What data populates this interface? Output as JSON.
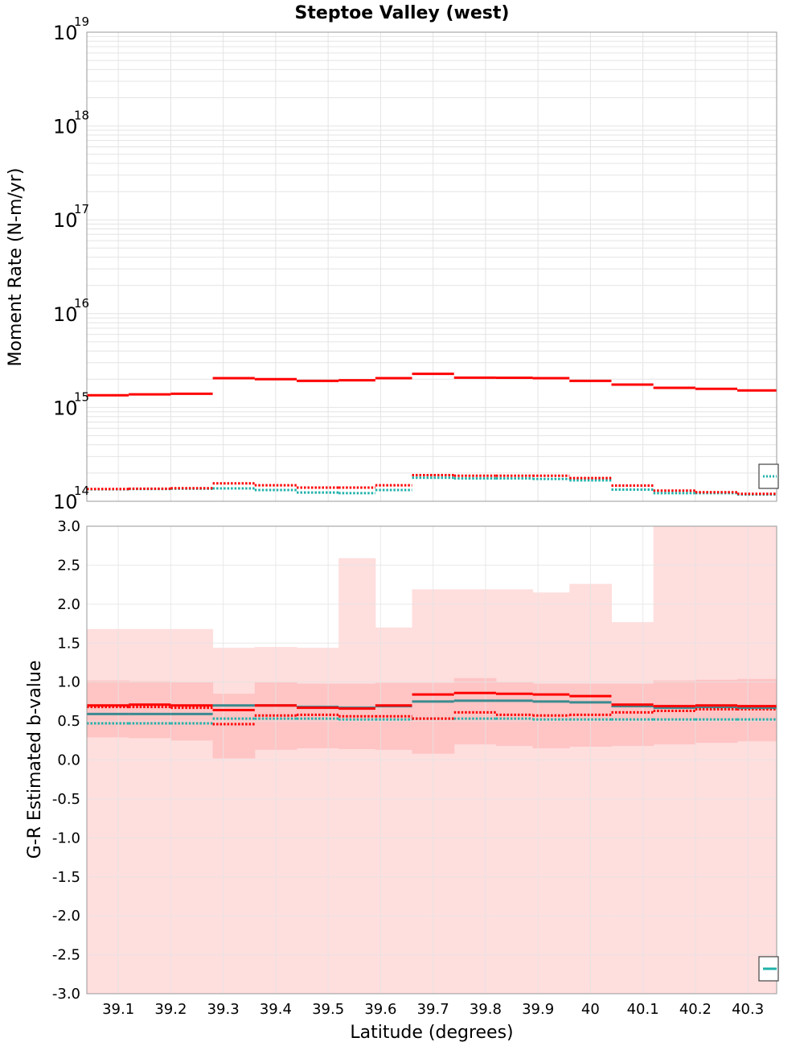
{
  "title": "Steptoe Valley (west)",
  "xlabel": "Latitude (degrees)",
  "xlim": [
    39.04,
    40.355
  ],
  "xticks": [
    "39.1",
    "39.2",
    "39.3",
    "39.4",
    "39.5",
    "39.6",
    "39.7",
    "39.8",
    "39.9",
    "40",
    "40.1",
    "40.2",
    "40.3"
  ],
  "colors": {
    "red": "#ff0000",
    "teal": "#20b2aa",
    "darkteal": "#3a8a8f",
    "bandLight": "#ffdede",
    "bandDark": "#ffc4c4",
    "grid": "#e4e4e4"
  },
  "chart_data": [
    {
      "type": "line",
      "panel": "top",
      "ylabel": "Moment Rate (N-m/yr)",
      "yscale": "log",
      "ylim": [
        100000000000000.0,
        1e+19
      ],
      "yticks": [
        {
          "base": "10",
          "exp": "14",
          "value": 100000000000000.0
        },
        {
          "base": "10",
          "exp": "15",
          "value": 1000000000000000.0
        },
        {
          "base": "10",
          "exp": "16",
          "value": 1e+16
        },
        {
          "base": "10",
          "exp": "17",
          "value": 1e+17
        },
        {
          "base": "10",
          "exp": "18",
          "value": 1e+18
        },
        {
          "base": "10",
          "exp": "19",
          "value": 1e+19
        }
      ],
      "bin_edges": [
        39.04,
        39.12,
        39.2,
        39.28,
        39.36,
        39.44,
        39.52,
        39.59,
        39.66,
        39.74,
        39.82,
        39.89,
        39.96,
        40.04,
        40.12,
        40.2,
        40.28,
        40.355
      ],
      "series": [
        {
          "name": "red-solid",
          "color": "#ff0000",
          "style": "solid",
          "values": [
            1350000000000000.0,
            1380000000000000.0,
            1400000000000000.0,
            2050000000000000.0,
            2000000000000000.0,
            1920000000000000.0,
            1950000000000000.0,
            2050000000000000.0,
            2280000000000000.0,
            2080000000000000.0,
            2070000000000000.0,
            2050000000000000.0,
            1920000000000000.0,
            1750000000000000.0,
            1620000000000000.0,
            1580000000000000.0,
            1520000000000000.0
          ]
        },
        {
          "name": "red-dotted",
          "color": "#ff0000",
          "style": "dotted",
          "values": [
            135000000000000.0,
            136000000000000.0,
            138000000000000.0,
            155000000000000.0,
            148000000000000.0,
            140000000000000.0,
            140000000000000.0,
            148000000000000.0,
            190000000000000.0,
            187000000000000.0,
            187000000000000.0,
            187000000000000.0,
            177000000000000.0,
            147000000000000.0,
            130000000000000.0,
            125000000000000.0,
            120000000000000.0
          ]
        },
        {
          "name": "teal-dotted",
          "color": "#20b2aa",
          "style": "dotted",
          "values": [
            134000000000000.0,
            135000000000000.0,
            136000000000000.0,
            137000000000000.0,
            132000000000000.0,
            124000000000000.0,
            122000000000000.0,
            132000000000000.0,
            178000000000000.0,
            175000000000000.0,
            175000000000000.0,
            173000000000000.0,
            167000000000000.0,
            133000000000000.0,
            122000000000000.0,
            122000000000000.0,
            118000000000000.0
          ]
        }
      ]
    },
    {
      "type": "line",
      "panel": "bottom",
      "ylabel": "G-R Estimated b-value",
      "ylim": [
        -3.0,
        3.0
      ],
      "yticks": [
        "3.0",
        "2.5",
        "2.0",
        "1.5",
        "1.0",
        "0.5",
        "0.0",
        "-0.5",
        "-1.0",
        "-1.5",
        "-2.0",
        "-2.5",
        "-3.0"
      ],
      "bin_edges": [
        39.04,
        39.12,
        39.2,
        39.28,
        39.36,
        39.44,
        39.52,
        39.59,
        39.66,
        39.74,
        39.82,
        39.89,
        39.96,
        40.04,
        40.12,
        40.2,
        40.28,
        40.355
      ],
      "bands": [
        {
          "name": "light-band",
          "color": "#ffdede",
          "lower": [
            -3.0,
            -3.0,
            -3.0,
            -3.0,
            -3.0,
            -3.0,
            -3.0,
            -3.0,
            -3.0,
            -3.0,
            -3.0,
            -3.0,
            -3.0,
            -3.0,
            -3.0,
            -3.0,
            -3.0
          ],
          "upper": [
            1.68,
            1.68,
            1.68,
            1.44,
            1.45,
            1.44,
            2.59,
            1.7,
            2.19,
            2.19,
            2.19,
            2.15,
            2.26,
            1.77,
            3.0,
            3.0,
            3.0
          ]
        },
        {
          "name": "dark-band",
          "color": "#ffc4c4",
          "lower": [
            0.29,
            0.28,
            0.25,
            0.02,
            0.13,
            0.15,
            0.14,
            0.13,
            0.08,
            0.2,
            0.18,
            0.15,
            0.17,
            0.18,
            0.2,
            0.22,
            0.24
          ],
          "upper": [
            1.02,
            1.01,
            1.0,
            0.85,
            1.0,
            0.98,
            0.98,
            0.99,
            0.99,
            1.05,
            1.0,
            0.98,
            0.98,
            0.98,
            1.02,
            1.03,
            1.04
          ]
        }
      ],
      "series": [
        {
          "name": "red-solid",
          "color": "#ff0000",
          "style": "solid",
          "values": [
            0.7,
            0.71,
            0.7,
            0.64,
            0.7,
            0.67,
            0.66,
            0.7,
            0.84,
            0.86,
            0.85,
            0.84,
            0.82,
            0.71,
            0.69,
            0.7,
            0.69
          ]
        },
        {
          "name": "red-dotted",
          "color": "#ff0000",
          "style": "dotted",
          "values": [
            0.68,
            0.68,
            0.67,
            0.46,
            0.57,
            0.58,
            0.56,
            0.56,
            0.53,
            0.61,
            0.58,
            0.57,
            0.58,
            0.61,
            0.63,
            0.65,
            0.65
          ]
        },
        {
          "name": "teal-solid",
          "color": "#3a8a8f",
          "style": "solid",
          "values": [
            0.59,
            0.59,
            0.59,
            0.7,
            0.7,
            0.68,
            0.67,
            0.69,
            0.75,
            0.76,
            0.76,
            0.75,
            0.74,
            0.69,
            0.67,
            0.68,
            0.67
          ]
        },
        {
          "name": "teal-dotted",
          "color": "#20b2aa",
          "style": "dotted",
          "values": [
            0.47,
            0.47,
            0.47,
            0.53,
            0.53,
            0.53,
            0.52,
            0.52,
            0.53,
            0.53,
            0.53,
            0.52,
            0.52,
            0.52,
            0.52,
            0.52,
            0.52
          ]
        }
      ]
    }
  ]
}
